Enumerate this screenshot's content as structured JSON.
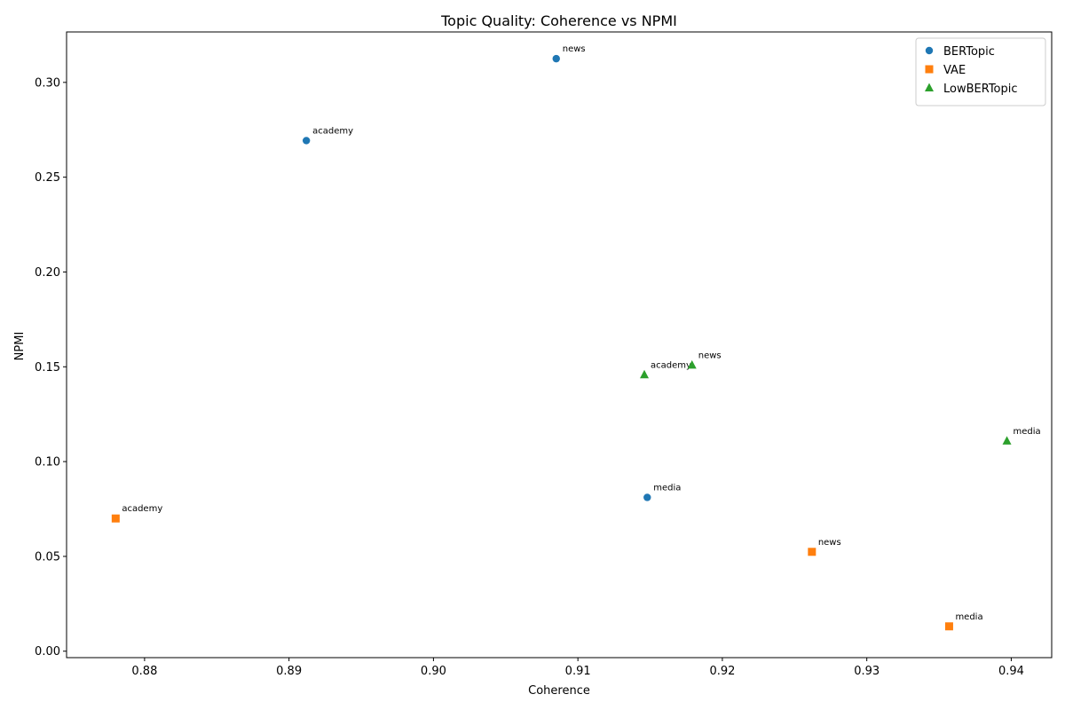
{
  "chart_data": {
    "type": "scatter",
    "title": "Topic Quality: Coherence vs NPMI",
    "xlabel": "Coherence",
    "ylabel": "NPMI",
    "xlim": [
      0.8746,
      0.9428
    ],
    "ylim": [
      -0.0034,
      0.3266
    ],
    "xticks": [
      "0.88",
      "0.89",
      "0.90",
      "0.91",
      "0.92",
      "0.93",
      "0.94"
    ],
    "yticks": [
      "0.00",
      "0.05",
      "0.10",
      "0.15",
      "0.20",
      "0.25",
      "0.30"
    ],
    "grid": false,
    "legend": "top-right",
    "series": [
      {
        "name": "BERTopic",
        "marker": "circle",
        "color": "#1f77b4",
        "points": [
          {
            "x": 0.9085,
            "y": 0.3125,
            "label": "news"
          },
          {
            "x": 0.8912,
            "y": 0.2693,
            "label": "academy"
          },
          {
            "x": 0.9148,
            "y": 0.0811,
            "label": "media"
          }
        ]
      },
      {
        "name": "VAE",
        "marker": "square",
        "color": "#ff7f0e",
        "points": [
          {
            "x": 0.878,
            "y": 0.07,
            "label": "academy"
          },
          {
            "x": 0.9262,
            "y": 0.0524,
            "label": "news"
          },
          {
            "x": 0.9357,
            "y": 0.0131,
            "label": "media"
          }
        ]
      },
      {
        "name": "LowBERTopic",
        "marker": "triangle",
        "color": "#2ca02c",
        "points": [
          {
            "x": 0.9146,
            "y": 0.1458,
            "label": "academy"
          },
          {
            "x": 0.9179,
            "y": 0.1509,
            "label": "news"
          },
          {
            "x": 0.9397,
            "y": 0.1109,
            "label": "media"
          }
        ]
      }
    ]
  }
}
